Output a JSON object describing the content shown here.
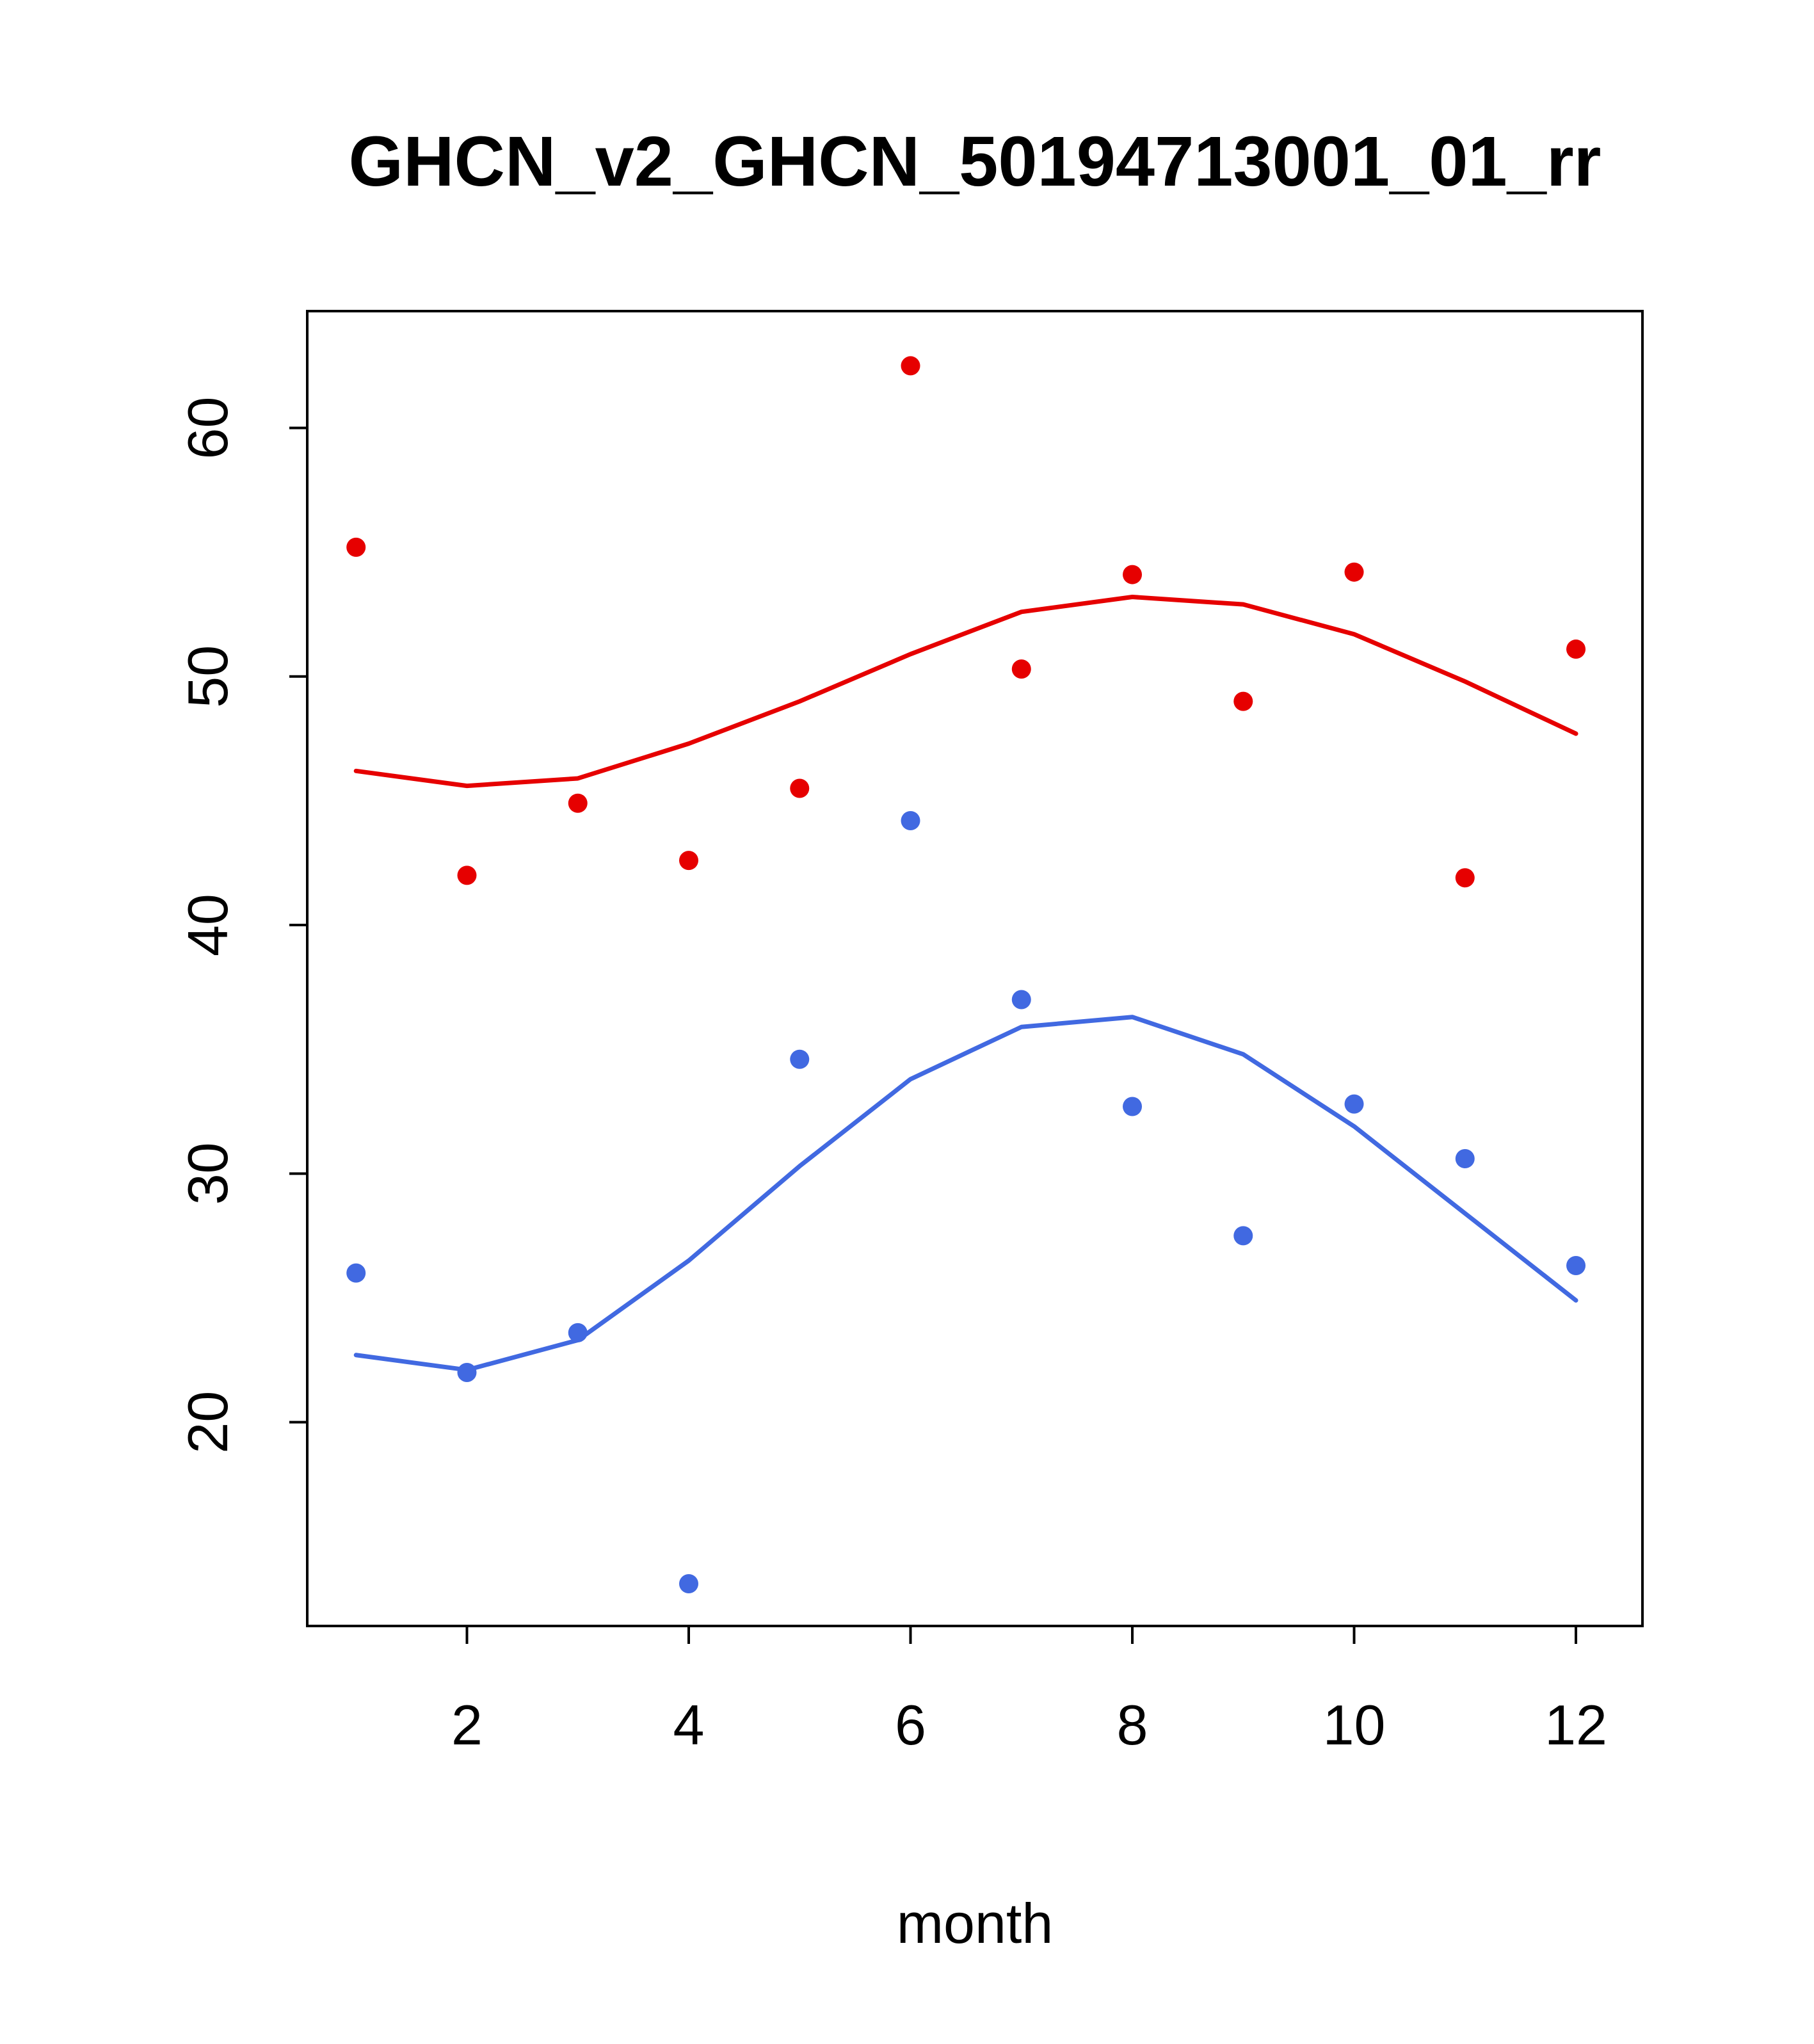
{
  "title": "GHCN_v2_GHCN_50194713001_01_rr",
  "chart_data": {
    "type": "scatter",
    "title": "GHCN_v2_GHCN_50194713001_01_rr",
    "xlabel": "month",
    "ylabel": "",
    "x": [
      1,
      2,
      3,
      4,
      5,
      6,
      7,
      8,
      9,
      10,
      11,
      12
    ],
    "xlim": [
      0.56,
      12.6
    ],
    "ylim": [
      11.8,
      64.7
    ],
    "x_ticks": [
      2,
      4,
      6,
      8,
      10,
      12
    ],
    "y_ticks": [
      20,
      30,
      40,
      50,
      60
    ],
    "grid": false,
    "legend": null,
    "colors": {
      "red": "#e60000",
      "blue": "#4169e1",
      "axis": "#000000"
    },
    "series": [
      {
        "name": "red-points",
        "type": "points",
        "color": "#e60000",
        "values": [
          55.2,
          42.0,
          44.9,
          42.6,
          45.5,
          62.5,
          50.3,
          54.1,
          49.0,
          54.2,
          41.9,
          51.1
        ]
      },
      {
        "name": "blue-points",
        "type": "points",
        "color": "#4169e1",
        "values": [
          26.0,
          22.0,
          23.6,
          13.5,
          34.6,
          44.2,
          37.0,
          32.7,
          27.5,
          32.8,
          30.6,
          26.3
        ]
      },
      {
        "name": "red-smooth",
        "type": "line",
        "color": "#e60000",
        "values": [
          46.2,
          45.6,
          45.9,
          47.3,
          49.0,
          50.9,
          52.6,
          53.2,
          52.9,
          51.7,
          49.8,
          47.7
        ]
      },
      {
        "name": "blue-smooth",
        "type": "line",
        "color": "#4169e1",
        "values": [
          22.7,
          22.1,
          23.3,
          26.5,
          30.3,
          33.8,
          35.9,
          36.3,
          34.8,
          31.9,
          28.4,
          24.9
        ]
      }
    ]
  }
}
